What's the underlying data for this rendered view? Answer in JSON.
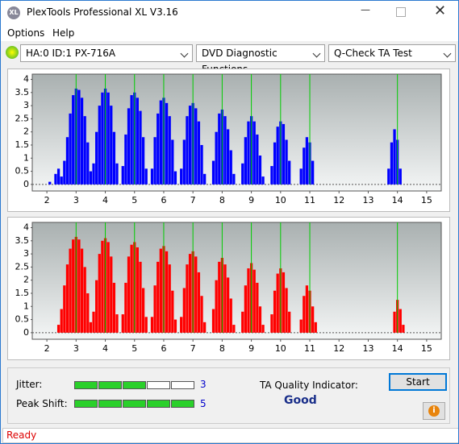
{
  "window": {
    "title": "PlexTools Professional XL V3.16",
    "menu": [
      "Options",
      "Help"
    ],
    "drive": "HA:0 ID:1  PX-716A",
    "function": "DVD Diagnostic Functions",
    "test": "Q-Check TA Test"
  },
  "chart_data": [
    {
      "type": "bar",
      "color": "#0000ff",
      "xlim": [
        1.5,
        15.5
      ],
      "ylim": [
        -0.25,
        4.2
      ],
      "xticks": [
        2,
        3,
        4,
        5,
        6,
        7,
        8,
        9,
        10,
        11,
        12,
        13,
        14,
        15
      ],
      "yticks": [
        0,
        0.5,
        1,
        1.5,
        2,
        2.5,
        3,
        3.5,
        4
      ],
      "reference_lines": [
        3,
        4,
        5,
        6,
        7,
        8,
        9,
        10,
        11,
        14
      ],
      "reference_color": "#00cc00",
      "x": [
        2.1,
        2.3,
        2.4,
        2.5,
        2.6,
        2.7,
        2.8,
        2.9,
        3.0,
        3.1,
        3.2,
        3.3,
        3.4,
        3.5,
        3.6,
        3.7,
        3.8,
        3.9,
        4.0,
        4.1,
        4.2,
        4.3,
        4.4,
        4.6,
        4.7,
        4.8,
        4.9,
        5.0,
        5.1,
        5.2,
        5.3,
        5.4,
        5.6,
        5.7,
        5.8,
        5.9,
        6.0,
        6.1,
        6.2,
        6.3,
        6.4,
        6.6,
        6.7,
        6.8,
        6.9,
        7.0,
        7.1,
        7.2,
        7.3,
        7.4,
        7.7,
        7.8,
        7.9,
        8.0,
        8.1,
        8.2,
        8.3,
        8.4,
        8.7,
        8.8,
        8.9,
        9.0,
        9.1,
        9.2,
        9.3,
        9.4,
        9.7,
        9.8,
        9.9,
        10.0,
        10.1,
        10.2,
        10.3,
        10.7,
        10.8,
        10.9,
        11.0,
        11.1,
        13.7,
        13.8,
        13.9,
        14.0,
        14.1
      ],
      "values": [
        0.1,
        0.4,
        0.6,
        0.3,
        0.9,
        1.8,
        2.7,
        3.4,
        3.65,
        3.6,
        3.3,
        2.6,
        1.6,
        0.5,
        0.8,
        2.0,
        3.0,
        3.5,
        3.65,
        3.5,
        3.0,
        2.0,
        0.8,
        0.7,
        1.9,
        2.9,
        3.4,
        3.5,
        3.3,
        2.8,
        1.8,
        0.6,
        0.6,
        1.8,
        2.7,
        3.2,
        3.3,
        3.1,
        2.6,
        1.7,
        0.5,
        0.6,
        1.7,
        2.6,
        3.0,
        3.1,
        2.9,
        2.4,
        1.5,
        0.4,
        0.9,
        2.0,
        2.7,
        2.85,
        2.6,
        2.1,
        1.3,
        0.4,
        0.8,
        1.8,
        2.4,
        2.6,
        2.4,
        1.9,
        1.1,
        0.3,
        0.7,
        1.6,
        2.2,
        2.4,
        2.3,
        1.7,
        0.9,
        0.6,
        1.4,
        1.8,
        1.6,
        0.9,
        0.6,
        1.6,
        2.1,
        1.7,
        0.6
      ]
    },
    {
      "type": "bar",
      "color": "#ff0000",
      "xlim": [
        1.5,
        15.5
      ],
      "ylim": [
        -0.25,
        4.2
      ],
      "xticks": [
        2,
        3,
        4,
        5,
        6,
        7,
        8,
        9,
        10,
        11,
        12,
        13,
        14,
        15
      ],
      "yticks": [
        0,
        0.5,
        1,
        1.5,
        2,
        2.5,
        3,
        3.5,
        4
      ],
      "reference_lines": [
        3,
        4,
        5,
        6,
        7,
        8,
        9,
        10,
        11,
        14
      ],
      "reference_color": "#00cc00",
      "x": [
        2.4,
        2.5,
        2.6,
        2.7,
        2.8,
        2.9,
        3.0,
        3.1,
        3.2,
        3.3,
        3.4,
        3.5,
        3.6,
        3.7,
        3.8,
        3.9,
        4.0,
        4.1,
        4.2,
        4.3,
        4.4,
        4.6,
        4.7,
        4.8,
        4.9,
        5.0,
        5.1,
        5.2,
        5.3,
        5.4,
        5.6,
        5.7,
        5.8,
        5.9,
        6.0,
        6.1,
        6.2,
        6.3,
        6.4,
        6.6,
        6.7,
        6.8,
        6.9,
        7.0,
        7.1,
        7.2,
        7.3,
        7.4,
        7.7,
        7.8,
        7.9,
        8.0,
        8.1,
        8.2,
        8.3,
        8.4,
        8.7,
        8.8,
        8.9,
        9.0,
        9.1,
        9.2,
        9.3,
        9.4,
        9.7,
        9.8,
        9.9,
        10.0,
        10.1,
        10.2,
        10.3,
        10.7,
        10.8,
        10.9,
        11.0,
        11.1,
        11.2,
        13.9,
        14.0,
        14.1,
        14.2
      ],
      "values": [
        0.3,
        0.9,
        1.8,
        2.6,
        3.2,
        3.55,
        3.65,
        3.55,
        3.2,
        2.5,
        1.5,
        0.4,
        0.8,
        2.0,
        3.0,
        3.5,
        3.6,
        3.45,
        2.9,
        1.9,
        0.7,
        0.7,
        1.9,
        2.9,
        3.35,
        3.45,
        3.25,
        2.7,
        1.7,
        0.6,
        0.6,
        1.8,
        2.7,
        3.2,
        3.3,
        3.1,
        2.6,
        1.6,
        0.5,
        0.6,
        1.7,
        2.6,
        3.0,
        3.1,
        2.9,
        2.3,
        1.4,
        0.4,
        0.9,
        2.0,
        2.7,
        2.85,
        2.6,
        2.1,
        1.3,
        0.3,
        0.8,
        1.8,
        2.45,
        2.65,
        2.4,
        1.9,
        1.0,
        0.3,
        0.7,
        1.6,
        2.25,
        2.45,
        2.3,
        1.7,
        0.8,
        0.5,
        1.4,
        1.8,
        1.6,
        1.0,
        0.4,
        0.8,
        1.25,
        0.9,
        0.3
      ]
    }
  ],
  "results": {
    "jitter_label": "Jitter:",
    "jitter": 3,
    "peak_shift_label": "Peak Shift:",
    "peak_shift": 5,
    "quality_label": "TA Quality Indicator:",
    "quality": "Good",
    "start": "Start"
  },
  "status": "Ready"
}
